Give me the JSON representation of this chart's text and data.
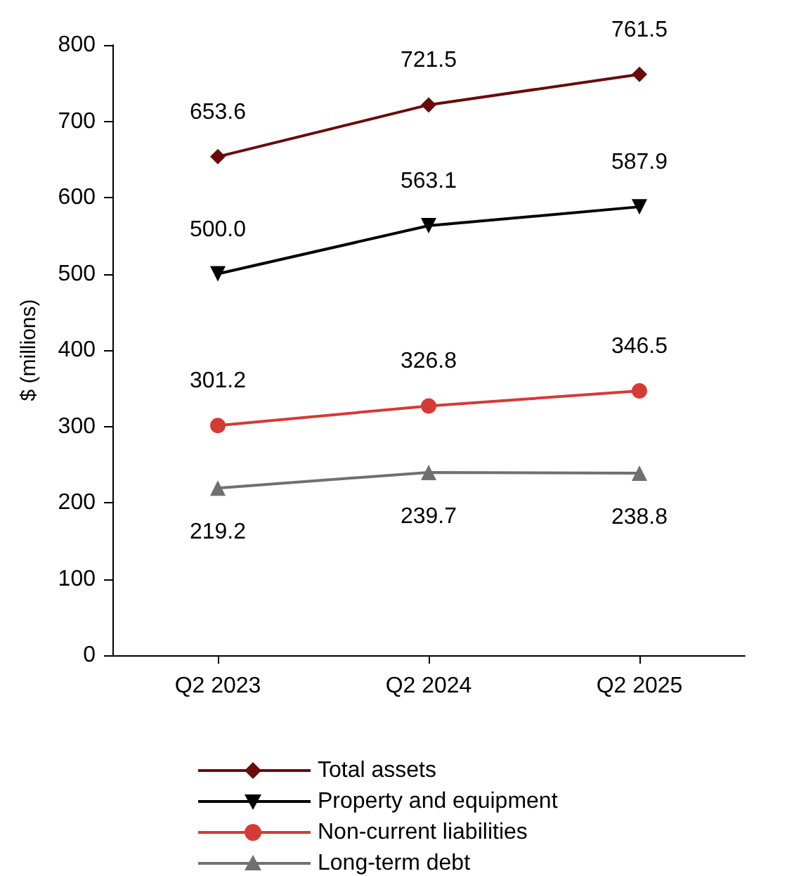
{
  "chart_data": {
    "type": "line",
    "ylabel": "$ (millions)",
    "categories": [
      "Q2 2023",
      "Q2 2024",
      "Q2 2025"
    ],
    "ylim": [
      0,
      800
    ],
    "yticks": [
      0,
      100,
      200,
      300,
      400,
      500,
      600,
      700,
      800
    ],
    "grid": false,
    "legend": "bottom",
    "series": [
      {
        "name": "Total assets",
        "color": "#6b0a0a",
        "marker": "diamond",
        "values": [
          653.6,
          721.5,
          761.5
        ],
        "value_labels": [
          "653.6",
          "721.5",
          "761.5"
        ]
      },
      {
        "name": "Property and equipment",
        "color": "#000000",
        "marker": "triangle-down",
        "values": [
          500.0,
          563.1,
          587.9
        ],
        "value_labels": [
          "500.0",
          "563.1",
          "587.9"
        ]
      },
      {
        "name": "Non-current liabilities",
        "color": "#d63a34",
        "marker": "circle",
        "values": [
          301.2,
          326.8,
          346.5
        ],
        "value_labels": [
          "301.2",
          "326.8",
          "346.5"
        ]
      },
      {
        "name": "Long-term debt",
        "color": "#707070",
        "marker": "triangle",
        "values": [
          219.2,
          239.7,
          238.8
        ],
        "value_labels": [
          "219.2",
          "239.7",
          "238.8"
        ]
      }
    ]
  }
}
